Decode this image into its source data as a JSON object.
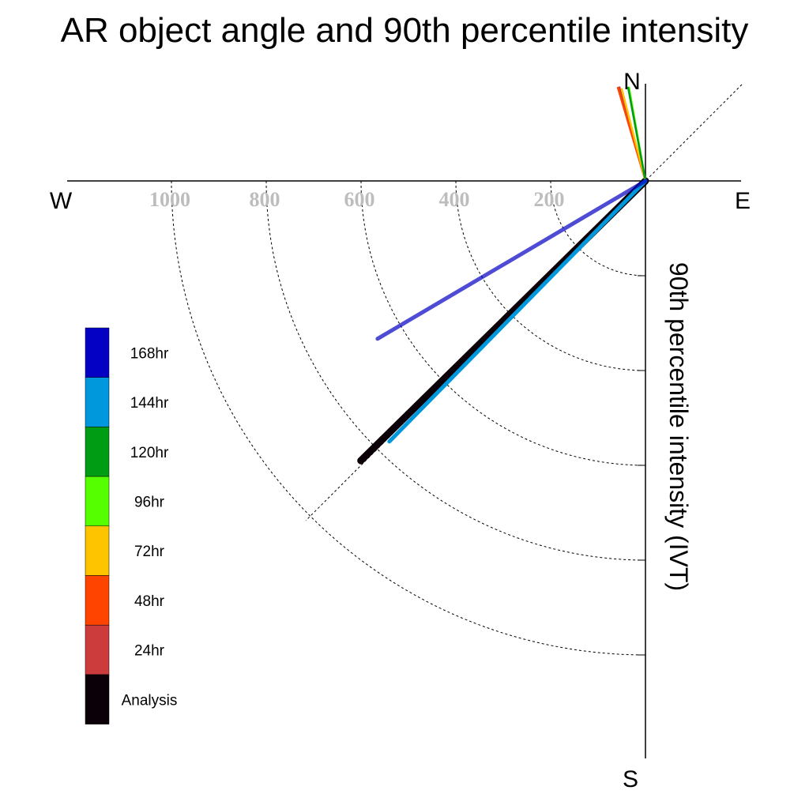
{
  "title": "AR object angle and 90th percentile intensity",
  "chart_data": {
    "type": "polar-vector",
    "title": "AR object angle and 90th percentile intensity",
    "radial_label": "90th percentile intensity (IVT)",
    "compass": [
      "N",
      "E",
      "S",
      "W"
    ],
    "radial_ticks": [
      200,
      400,
      600,
      800,
      1000
    ],
    "rlim": [
      0,
      1200
    ],
    "grid": true,
    "legend_placement": "left",
    "series": [
      {
        "name": "Analysis",
        "color": "#0c0008",
        "angle_deg": 225.5,
        "intensity": 842
      },
      {
        "name": "24hr",
        "color": "#cc3c3c",
        "angle_deg": 344.5,
        "intensity": 205
      },
      {
        "name": "48hr",
        "color": "#ff4400",
        "angle_deg": 343.5,
        "intensity": 205
      },
      {
        "name": "72hr",
        "color": "#ffc400",
        "angle_deg": 345.5,
        "intensity": 200
      },
      {
        "name": "96hr",
        "color": "#55ff00",
        "angle_deg": 350.0,
        "intensity": 200
      },
      {
        "name": "120hr",
        "color": "#009c14",
        "angle_deg": 349.5,
        "intensity": 200
      },
      {
        "name": "144hr",
        "color": "#0098dc",
        "angle_deg": 224.5,
        "intensity": 771
      },
      {
        "name": "168hr",
        "color": "#0400c4",
        "angle_deg": 239.5,
        "intensity": 656
      }
    ]
  }
}
